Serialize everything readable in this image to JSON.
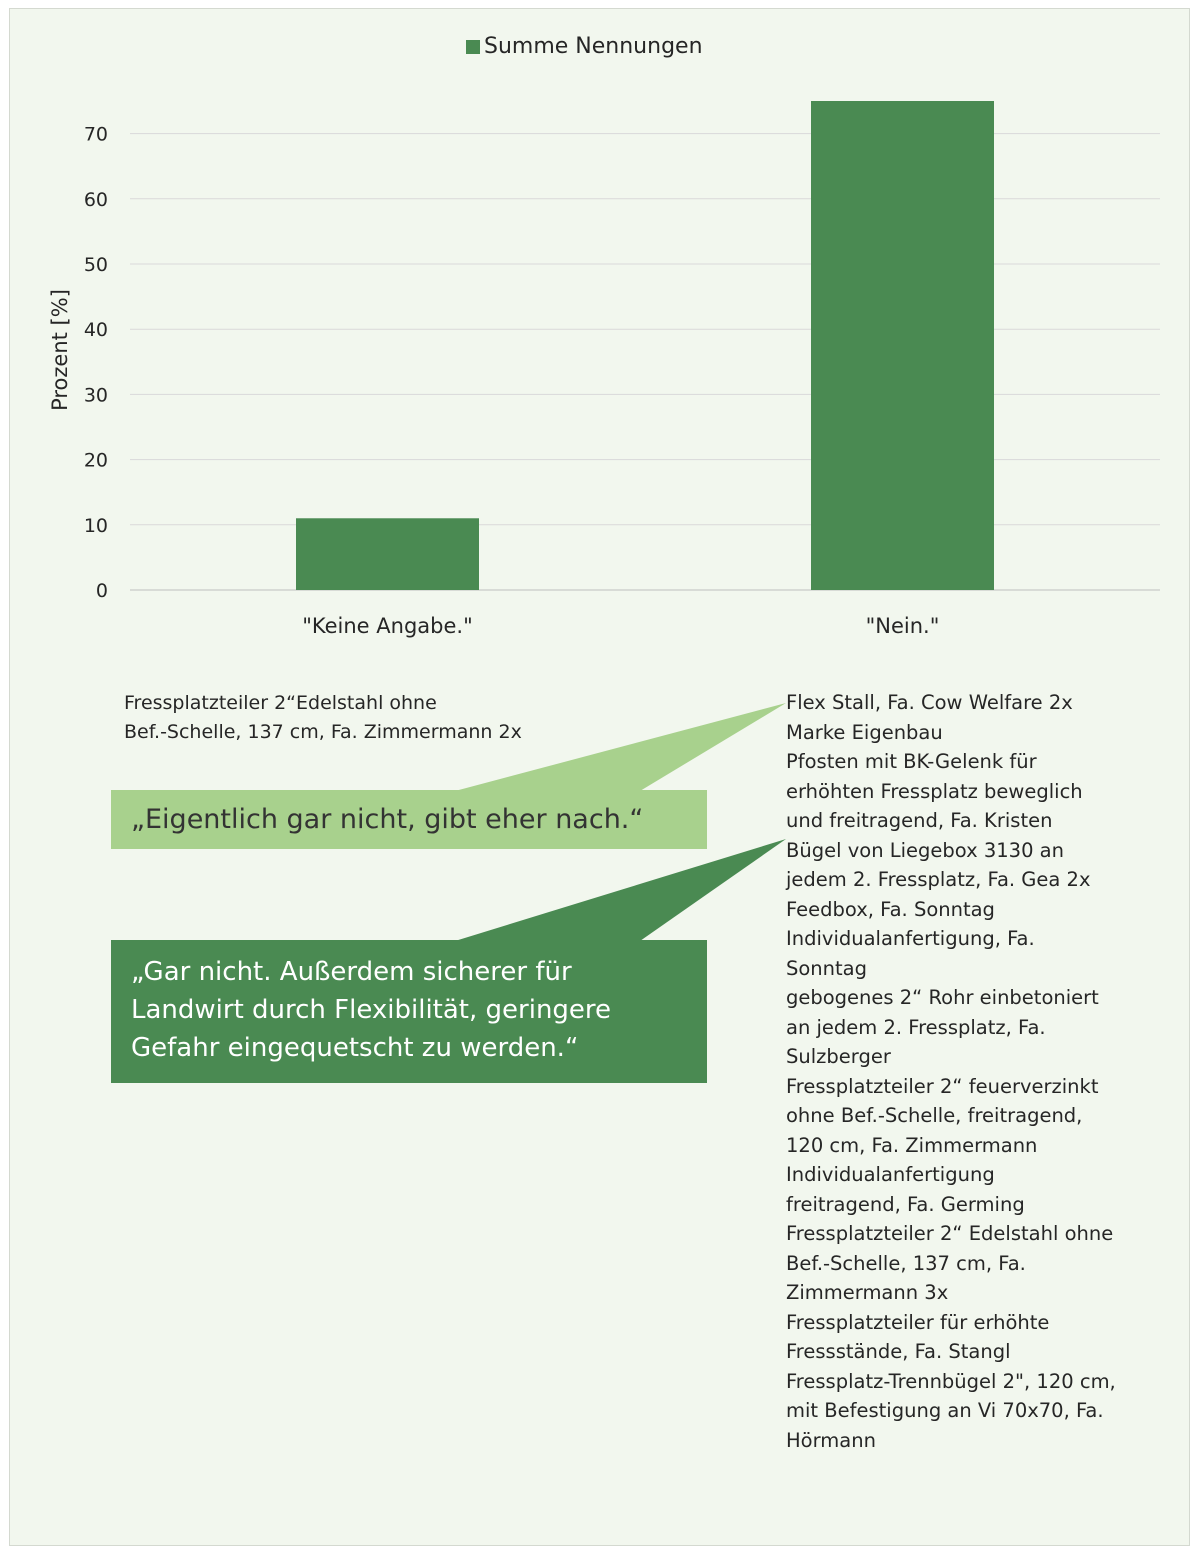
{
  "chart_data": {
    "type": "bar",
    "categories": [
      "\"Keine Angabe.\"",
      "\"Nein.\""
    ],
    "series": [
      {
        "name": "Summe Nennungen",
        "values": [
          11,
          75
        ]
      }
    ],
    "ylabel": "Prozent [%]",
    "xlabel": "",
    "title": "",
    "ylim": [
      0,
      70
    ],
    "yticks": [
      0,
      10,
      20,
      30,
      40,
      50,
      60,
      70
    ],
    "grid": true,
    "legend": "top-center",
    "colors": {
      "bar": "#4a8a52",
      "grid": "#d9d9d9",
      "background": "#f2f7ee"
    }
  },
  "legend": {
    "label": "Summe Nennungen"
  },
  "axis": {
    "ylabel": "Prozent [%]"
  },
  "notes": {
    "left": "Fressplatzteiler 2“Edelstahl ohne\nBef.-Schelle, 137 cm, Fa. Zimmermann 2x",
    "right": "Flex Stall, Fa. Cow Welfare 2x\nMarke Eigenbau\nPfosten mit BK-Gelenk für\nerhöhten Fressplatz beweglich\nund freitragend, Fa. Kristen\nBügel von Liegebox 3130 an\njedem 2. Fressplatz, Fa. Gea 2x\nFeedbox, Fa. Sonntag\nIndividualanfertigung, Fa.\nSonntag\ngebogenes 2“ Rohr einbetoniert\nan jedem 2. Fressplatz, Fa.\nSulzberger\nFressplatzteiler 2“ feuerverzinkt\nohne Bef.-Schelle, freitragend,\n120 cm, Fa. Zimmermann\nIndividualanfertigung\nfreitragend, Fa. Germing\nFressplatzteiler 2“ Edelstahl ohne\nBef.-Schelle, 137 cm, Fa.\nZimmermann 3x\nFressplatzteiler für erhöhte\nFressstände, Fa. Stangl\nFressplatz-Trennbügel 2\", 120 cm,\nmit Befestigung an Vi 70x70, Fa.\nHörmann"
  },
  "callouts": {
    "light": "„Eigentlich gar nicht, gibt eher nach.“",
    "dark": "„Gar nicht. Außerdem sicherer für\nLandwirt durch Flexibilität, geringere\nGefahr eingequetscht zu werden.“",
    "light_color": "#a8d18d",
    "dark_color": "#4a8a52"
  }
}
